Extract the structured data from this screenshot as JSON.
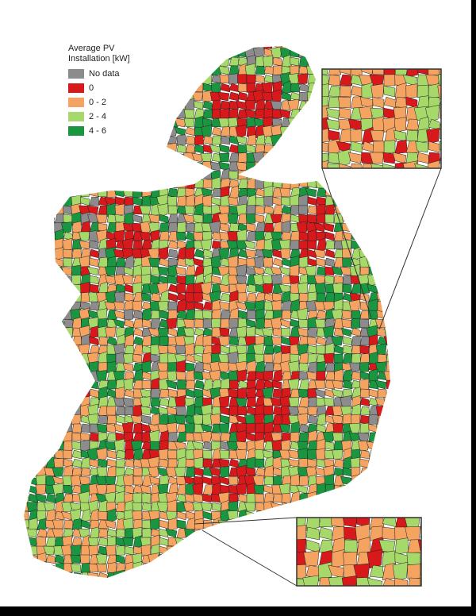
{
  "legend": {
    "title": "Average PV Installation [kW]",
    "items": [
      {
        "label": "No data",
        "color": "#8c8c8c"
      },
      {
        "label": "0",
        "color": "#d7191c"
      },
      {
        "label": "0 - 2",
        "color": "#f4a460"
      },
      {
        "label": "2 - 4",
        "color": "#a6d96a"
      },
      {
        "label": "4 - 6",
        "color": "#1a9641"
      }
    ]
  }
}
